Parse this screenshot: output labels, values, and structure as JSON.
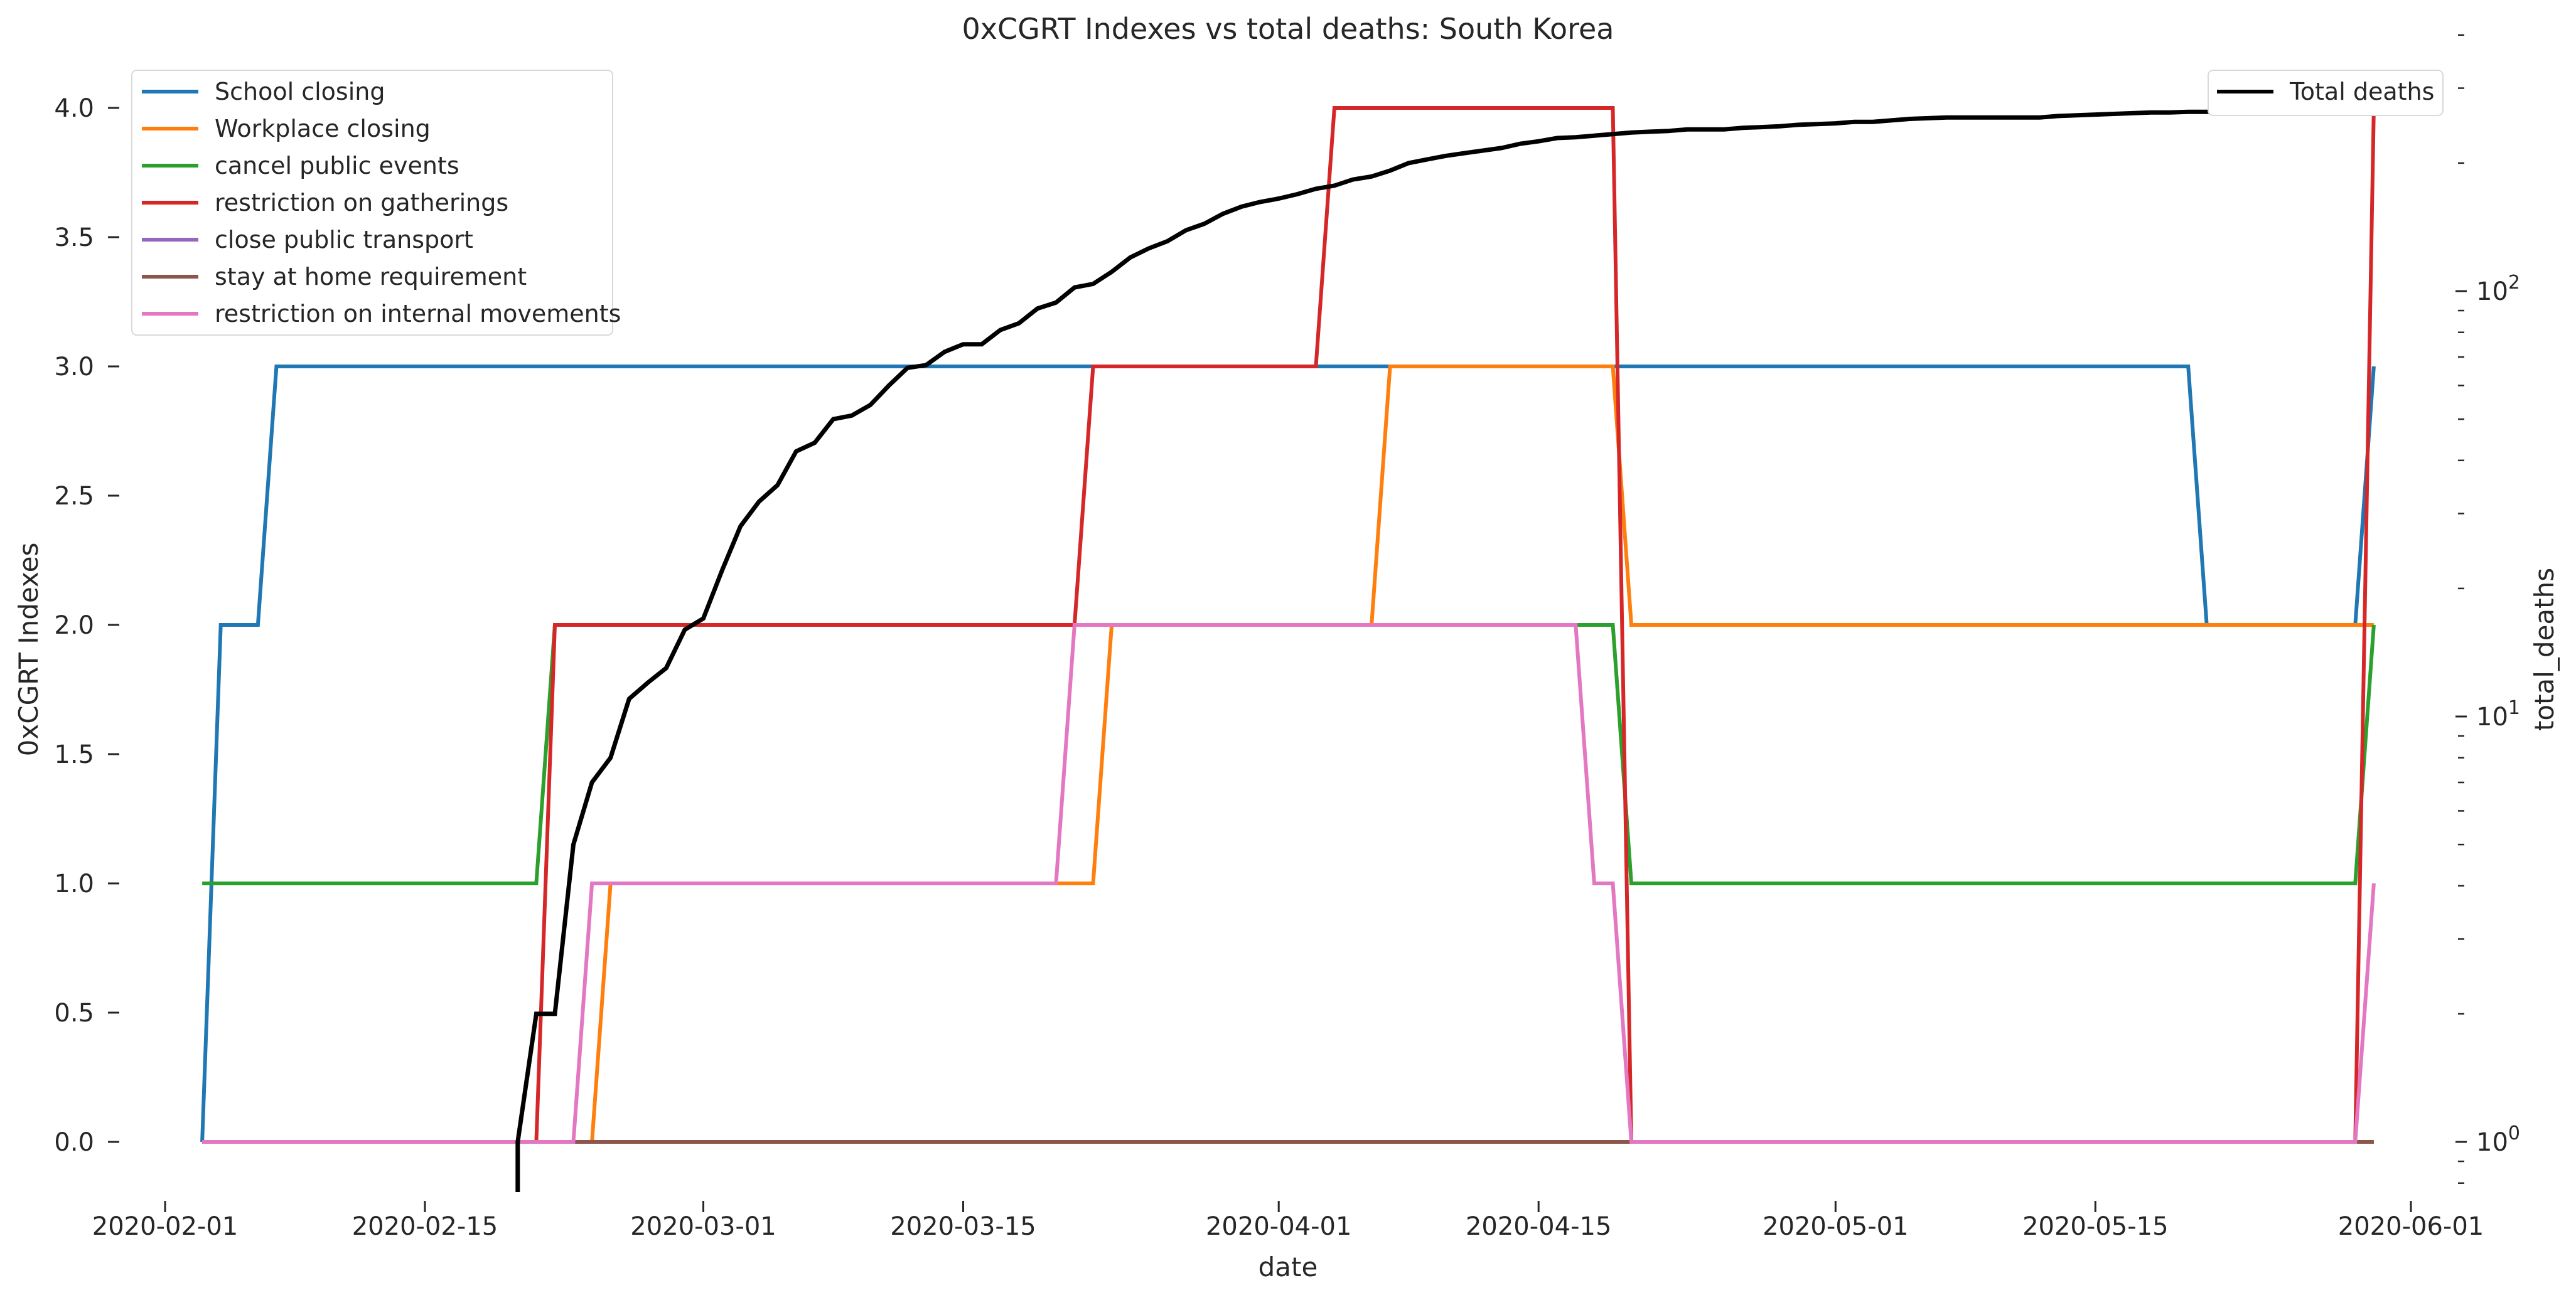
{
  "chart_data": {
    "type": "line",
    "title": "0xCGRT Indexes vs total deaths:  South Korea",
    "xlabel": "date",
    "ylabel": "0xCGRT Indexes",
    "y2label": "total_deaths",
    "y2scale": "log",
    "xlim": [
      "2020-02-01",
      "2020-06-01"
    ],
    "ylim": [
      -0.2,
      4.2
    ],
    "y2lim": [
      0.8,
      400
    ],
    "x_ticks": [
      "2020-02-01",
      "2020-02-15",
      "2020-03-01",
      "2020-03-15",
      "2020-04-01",
      "2020-04-15",
      "2020-05-01",
      "2020-05-15",
      "2020-06-01"
    ],
    "y_ticks": [
      "0.0",
      "0.5",
      "1.0",
      "1.5",
      "2.0",
      "2.5",
      "3.0",
      "3.5",
      "4.0"
    ],
    "y2_ticks": [
      {
        "value": 1,
        "base": "10",
        "exp": "0"
      },
      {
        "value": 10,
        "base": "10",
        "exp": "1"
      },
      {
        "value": 100,
        "base": "10",
        "exp": "2"
      }
    ],
    "grid": false,
    "legend_position": "top-left",
    "legend2_position": "top-right",
    "series": [
      {
        "name": "School closing",
        "color": "#1f77b4",
        "axis": "left",
        "points": [
          [
            "2020-02-03",
            0
          ],
          [
            "2020-02-04",
            2
          ],
          [
            "2020-02-06",
            2
          ],
          [
            "2020-02-07",
            3
          ],
          [
            "2020-05-20",
            3
          ],
          [
            "2020-05-21",
            2
          ],
          [
            "2020-05-29",
            2
          ],
          [
            "2020-05-30",
            3
          ]
        ]
      },
      {
        "name": "Workplace closing",
        "color": "#ff7f0e",
        "axis": "left",
        "points": [
          [
            "2020-02-03",
            0
          ],
          [
            "2020-02-24",
            0
          ],
          [
            "2020-02-25",
            1
          ],
          [
            "2020-03-22",
            1
          ],
          [
            "2020-03-23",
            2
          ],
          [
            "2020-04-06",
            2
          ],
          [
            "2020-04-07",
            3
          ],
          [
            "2020-04-19",
            3
          ],
          [
            "2020-04-20",
            2
          ],
          [
            "2020-05-30",
            2
          ]
        ]
      },
      {
        "name": "cancel public events",
        "color": "#2ca02c",
        "axis": "left",
        "points": [
          [
            "2020-02-03",
            1
          ],
          [
            "2020-02-21",
            1
          ],
          [
            "2020-02-22",
            2
          ],
          [
            "2020-04-19",
            2
          ],
          [
            "2020-04-20",
            1
          ],
          [
            "2020-05-29",
            1
          ],
          [
            "2020-05-30",
            2
          ]
        ]
      },
      {
        "name": "restriction on gatherings",
        "color": "#d62728",
        "axis": "left",
        "points": [
          [
            "2020-02-03",
            0
          ],
          [
            "2020-02-21",
            0
          ],
          [
            "2020-02-22",
            2
          ],
          [
            "2020-03-21",
            2
          ],
          [
            "2020-03-22",
            3
          ],
          [
            "2020-04-03",
            3
          ],
          [
            "2020-04-04",
            4
          ],
          [
            "2020-04-19",
            4
          ],
          [
            "2020-04-20",
            0
          ],
          [
            "2020-05-29",
            0
          ],
          [
            "2020-05-30",
            4
          ]
        ]
      },
      {
        "name": "close public transport",
        "color": "#9467bd",
        "axis": "left",
        "points": [
          [
            "2020-02-03",
            0
          ],
          [
            "2020-05-30",
            0
          ]
        ]
      },
      {
        "name": "stay at home requirement",
        "color": "#8c564b",
        "axis": "left",
        "points": [
          [
            "2020-02-03",
            0
          ],
          [
            "2020-05-30",
            0
          ]
        ]
      },
      {
        "name": "restriction on internal movements",
        "color": "#e377c2",
        "axis": "left",
        "points": [
          [
            "2020-02-03",
            0
          ],
          [
            "2020-02-23",
            0
          ],
          [
            "2020-02-24",
            1
          ],
          [
            "2020-03-20",
            1
          ],
          [
            "2020-03-21",
            2
          ],
          [
            "2020-04-17",
            2
          ],
          [
            "2020-04-18",
            1
          ],
          [
            "2020-04-19",
            1
          ],
          [
            "2020-04-20",
            0
          ],
          [
            "2020-05-29",
            0
          ],
          [
            "2020-05-30",
            1
          ]
        ]
      },
      {
        "name": "Total deaths",
        "color": "#000000",
        "axis": "right",
        "points": [
          [
            "2020-02-20",
            1
          ],
          [
            "2020-02-21",
            2
          ],
          [
            "2020-02-22",
            2
          ],
          [
            "2020-02-23",
            5
          ],
          [
            "2020-02-24",
            7
          ],
          [
            "2020-02-25",
            8
          ],
          [
            "2020-02-26",
            11
          ],
          [
            "2020-02-27",
            12
          ],
          [
            "2020-02-28",
            13
          ],
          [
            "2020-02-29",
            16
          ],
          [
            "2020-03-01",
            17
          ],
          [
            "2020-03-02",
            22
          ],
          [
            "2020-03-03",
            28
          ],
          [
            "2020-03-04",
            32
          ],
          [
            "2020-03-05",
            35
          ],
          [
            "2020-03-06",
            42
          ],
          [
            "2020-03-07",
            44
          ],
          [
            "2020-03-08",
            50
          ],
          [
            "2020-03-09",
            51
          ],
          [
            "2020-03-10",
            54
          ],
          [
            "2020-03-11",
            60
          ],
          [
            "2020-03-12",
            66
          ],
          [
            "2020-03-13",
            67
          ],
          [
            "2020-03-14",
            72
          ],
          [
            "2020-03-15",
            75
          ],
          [
            "2020-03-16",
            75
          ],
          [
            "2020-03-17",
            81
          ],
          [
            "2020-03-18",
            84
          ],
          [
            "2020-03-19",
            91
          ],
          [
            "2020-03-20",
            94
          ],
          [
            "2020-03-21",
            102
          ],
          [
            "2020-03-22",
            104
          ],
          [
            "2020-03-23",
            111
          ],
          [
            "2020-03-24",
            120
          ],
          [
            "2020-03-25",
            126
          ],
          [
            "2020-03-26",
            131
          ],
          [
            "2020-03-27",
            139
          ],
          [
            "2020-03-28",
            144
          ],
          [
            "2020-03-29",
            152
          ],
          [
            "2020-03-30",
            158
          ],
          [
            "2020-03-31",
            162
          ],
          [
            "2020-04-01",
            165
          ],
          [
            "2020-04-02",
            169
          ],
          [
            "2020-04-03",
            174
          ],
          [
            "2020-04-04",
            177
          ],
          [
            "2020-04-05",
            183
          ],
          [
            "2020-04-06",
            186
          ],
          [
            "2020-04-07",
            192
          ],
          [
            "2020-04-08",
            200
          ],
          [
            "2020-04-09",
            204
          ],
          [
            "2020-04-10",
            208
          ],
          [
            "2020-04-11",
            211
          ],
          [
            "2020-04-12",
            214
          ],
          [
            "2020-04-13",
            217
          ],
          [
            "2020-04-14",
            222
          ],
          [
            "2020-04-15",
            225
          ],
          [
            "2020-04-16",
            229
          ],
          [
            "2020-04-17",
            230
          ],
          [
            "2020-04-18",
            232
          ],
          [
            "2020-04-19",
            234
          ],
          [
            "2020-04-20",
            236
          ],
          [
            "2020-04-21",
            237
          ],
          [
            "2020-04-22",
            238
          ],
          [
            "2020-04-23",
            240
          ],
          [
            "2020-04-24",
            240
          ],
          [
            "2020-04-25",
            240
          ],
          [
            "2020-04-26",
            242
          ],
          [
            "2020-04-27",
            243
          ],
          [
            "2020-04-28",
            244
          ],
          [
            "2020-04-29",
            246
          ],
          [
            "2020-04-30",
            247
          ],
          [
            "2020-05-01",
            248
          ],
          [
            "2020-05-02",
            250
          ],
          [
            "2020-05-03",
            250
          ],
          [
            "2020-05-04",
            252
          ],
          [
            "2020-05-05",
            254
          ],
          [
            "2020-05-06",
            255
          ],
          [
            "2020-05-07",
            256
          ],
          [
            "2020-05-08",
            256
          ],
          [
            "2020-05-09",
            256
          ],
          [
            "2020-05-10",
            256
          ],
          [
            "2020-05-11",
            256
          ],
          [
            "2020-05-12",
            256
          ],
          [
            "2020-05-13",
            258
          ],
          [
            "2020-05-14",
            259
          ],
          [
            "2020-05-15",
            260
          ],
          [
            "2020-05-16",
            261
          ],
          [
            "2020-05-17",
            262
          ],
          [
            "2020-05-18",
            263
          ],
          [
            "2020-05-19",
            263
          ],
          [
            "2020-05-20",
            264
          ],
          [
            "2020-05-21",
            264
          ],
          [
            "2020-05-22",
            264
          ],
          [
            "2020-05-23",
            266
          ],
          [
            "2020-05-24",
            266
          ],
          [
            "2020-05-25",
            267
          ],
          [
            "2020-05-26",
            269
          ],
          [
            "2020-05-27",
            269
          ],
          [
            "2020-05-28",
            269
          ],
          [
            "2020-05-29",
            269
          ],
          [
            "2020-05-30",
            269
          ]
        ]
      }
    ]
  }
}
